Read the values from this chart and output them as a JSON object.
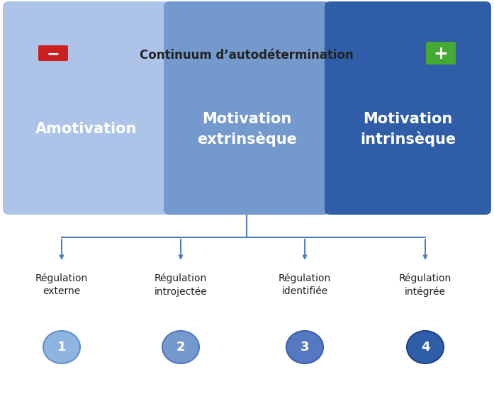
{
  "title": "Continuum d’autodétermination",
  "box1_label": "Amotivation",
  "box2_label": "Motivation\nextrinsèque",
  "box3_label": "Motivation\nintrinsèque",
  "box1_color": "#adc4e8",
  "box2_color": "#7499cc",
  "box3_color": "#2f5da8",
  "arrow_fill_color": "#c8d8f0",
  "arrow_edge_color": "#b0c8e8",
  "reg_labels": [
    "Régulation\nexterne",
    "Régulation\nintrojectée",
    "Régulation\nidentifiée",
    "Régulation\nintégrée"
  ],
  "reg_numbers": [
    "1",
    "2",
    "3",
    "4"
  ],
  "circle_colors": [
    "#8eb4e0",
    "#7499cc",
    "#5578c0",
    "#2f5da8"
  ],
  "circle_edge_colors": [
    "#6090c8",
    "#5578c0",
    "#3a60b0",
    "#1e448a"
  ],
  "line_color": "#5080b8",
  "minus_color": "#cc2020",
  "plus_color": "#44aa33",
  "bg_color": "#ffffff",
  "text_color_dark": "#222222",
  "text_color_white": "#ffffff",
  "arrow_body_color": "#d0dff5"
}
